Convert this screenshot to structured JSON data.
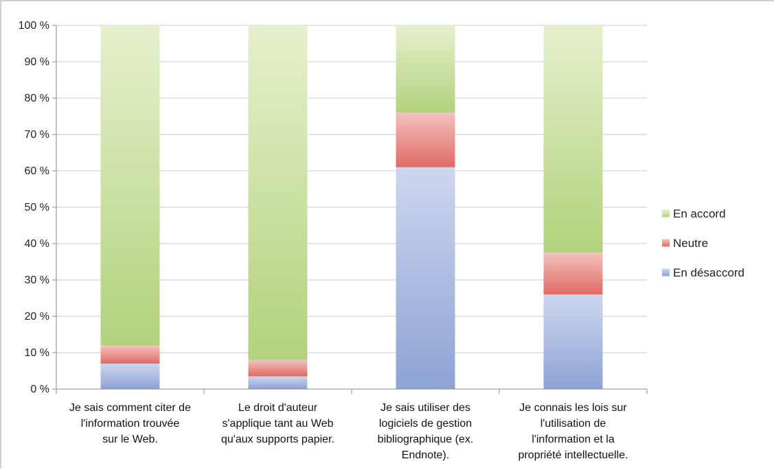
{
  "chart_data": {
    "type": "bar",
    "stacked": true,
    "percent": true,
    "categories": [
      [
        "Je sais comment citer de",
        "l'information trouvée",
        "sur le Web."
      ],
      [
        "Le droit d'auteur",
        "s'applique tant au Web",
        "qu'aux supports papier."
      ],
      [
        "Je sais utiliser des",
        "logiciels de gestion",
        "bibliographique (ex.",
        "Endnote)."
      ],
      [
        "Je connais les lois sur",
        "l'utilisation de",
        "l'information et la",
        "propriété intellectuelle."
      ]
    ],
    "series": [
      {
        "name": "En désaccord",
        "values": [
          7,
          3.5,
          61,
          26
        ],
        "color_top": "#cdd6ee",
        "color_bottom": "#8da3d5"
      },
      {
        "name": "Neutre",
        "values": [
          5,
          4.5,
          15,
          11.5
        ],
        "color_top": "#f4c2c0",
        "color_bottom": "#e06a63"
      },
      {
        "name": "En accord",
        "values": [
          88,
          92,
          24,
          62.5
        ],
        "color_top": "#e6f0cd",
        "color_bottom": "#b2d27c"
      }
    ],
    "legend_order": [
      "En accord",
      "Neutre",
      "En désaccord"
    ],
    "legend_position": "right",
    "ylim": [
      0,
      100
    ],
    "yticks": [
      "0 %",
      "10 %",
      "20 %",
      "30 %",
      "40 %",
      "50 %",
      "60 %",
      "70 %",
      "80 %",
      "90 %",
      "100 %"
    ],
    "grid": true,
    "title": "",
    "xlabel": "",
    "ylabel": ""
  }
}
